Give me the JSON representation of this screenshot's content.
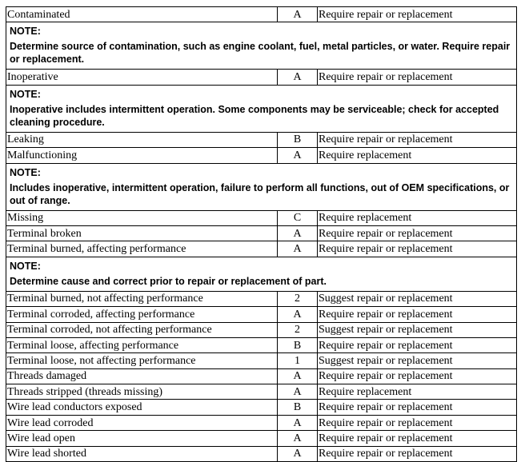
{
  "table": {
    "rows": [
      {
        "condition": "Contaminated",
        "code": "A",
        "action": "Require repair or replacement"
      },
      {
        "label": "NOTE:",
        "text": "Determine source of contamination, such as engine coolant, fuel, metal particles, or water. Require repair or replacement."
      },
      {
        "condition": "Inoperative",
        "code": "A",
        "action": "Require repair or replacement"
      },
      {
        "label": "NOTE:",
        "text": "Inoperative includes intermittent operation. Some components may be serviceable; check for accepted cleaning procedure."
      },
      {
        "condition": "Leaking",
        "code": "B",
        "action": "Require repair or replacement"
      },
      {
        "condition": "Malfunctioning",
        "code": "A",
        "action": "Require replacement"
      },
      {
        "label": "NOTE:",
        "text": "Includes inoperative, intermittent operation, failure to perform all functions, out of OEM specifications, or out of range."
      },
      {
        "condition": "Missing",
        "code": "C",
        "action": "Require replacement"
      },
      {
        "condition": "Terminal broken",
        "code": "A",
        "action": "Require repair or replacement"
      },
      {
        "condition": "Terminal burned, affecting performance",
        "code": "A",
        "action": "Require repair or replacement"
      },
      {
        "label": "NOTE:",
        "text": "Determine cause and correct prior to repair or replacement of part."
      },
      {
        "condition": "Terminal burned, not affecting performance",
        "code": "2",
        "action": "Suggest repair or replacement"
      },
      {
        "condition": "Terminal corroded, affecting performance",
        "code": "A",
        "action": "Require repair or replacement"
      },
      {
        "condition": "Terminal corroded, not affecting performance",
        "code": "2",
        "action": "Suggest repair or replacement"
      },
      {
        "condition": "Terminal loose, affecting performance",
        "code": "B",
        "action": "Require repair or replacement"
      },
      {
        "condition": "Terminal loose, not affecting performance",
        "code": "1",
        "action": "Suggest repair or replacement"
      },
      {
        "condition": "Threads damaged",
        "code": "A",
        "action": "Require repair or replacement"
      },
      {
        "condition": "Threads stripped (threads missing)",
        "code": "A",
        "action": "Require replacement"
      },
      {
        "condition": "Wire lead conductors exposed",
        "code": "B",
        "action": "Require repair or replacement"
      },
      {
        "condition": "Wire lead corroded",
        "code": "A",
        "action": "Require repair or replacement"
      },
      {
        "condition": "Wire lead open",
        "code": "A",
        "action": "Require repair or replacement"
      },
      {
        "condition": "Wire lead shorted",
        "code": "A",
        "action": "Require repair or replacement"
      }
    ]
  }
}
